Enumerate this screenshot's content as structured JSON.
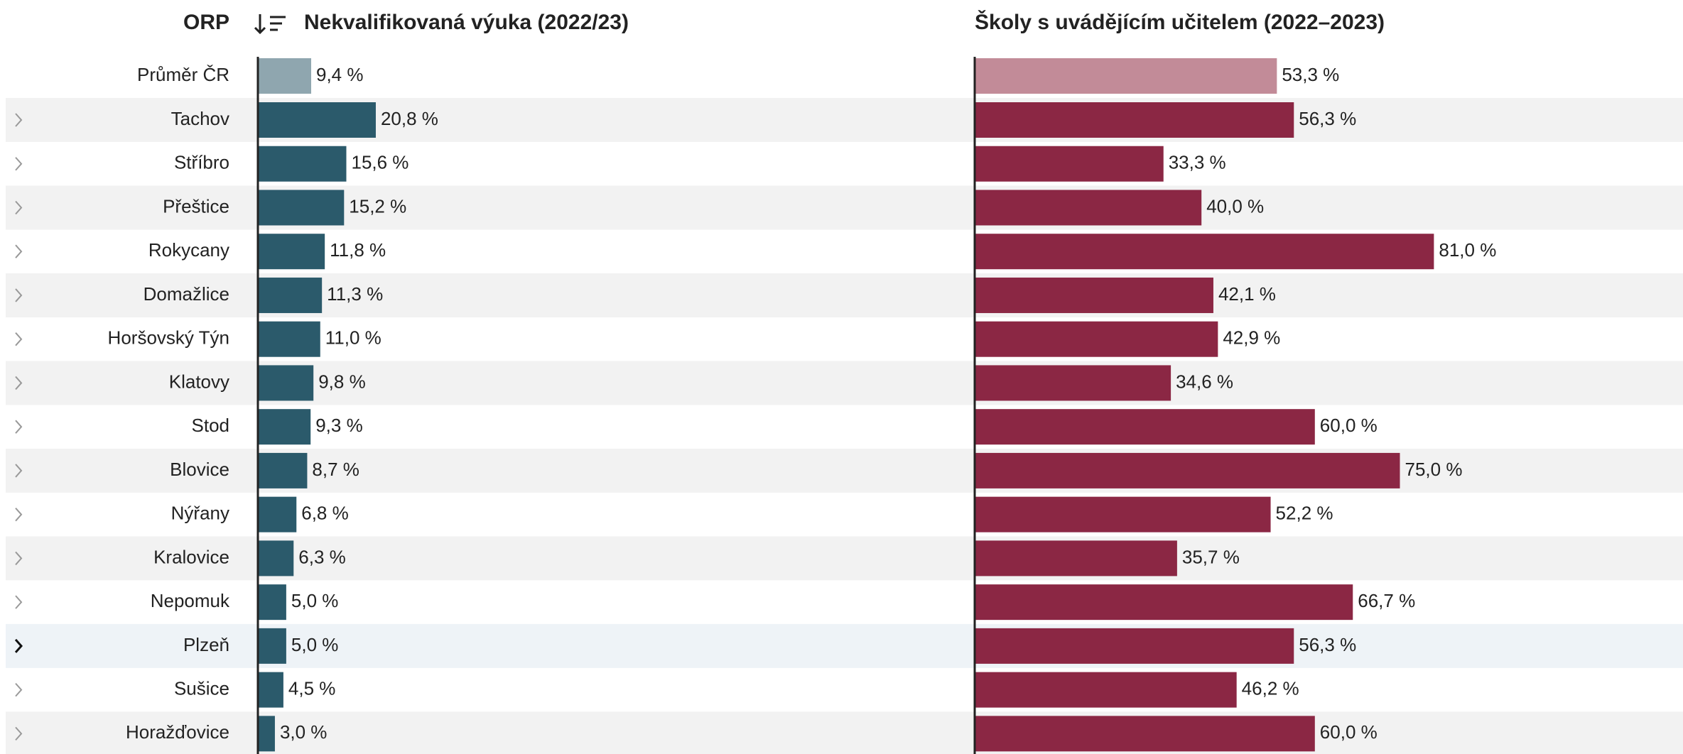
{
  "header": {
    "name": "ORP",
    "columns": [
      {
        "title": "Nekvalifikovaná výuka (2022/23)",
        "color": "#2b5a6b",
        "average_color": "#8fa6af"
      },
      {
        "title": "Školy s uvádějícím učitelem (2022–2023)",
        "color": "#8b2744",
        "average_color": "#c28b98"
      }
    ]
  },
  "average": {
    "name": "Průměr ČR",
    "values": [
      9.4,
      53.3
    ],
    "value_labels": [
      "9,4 %",
      "53,3 %"
    ]
  },
  "rows": [
    {
      "name": "Tachov",
      "values": [
        20.8,
        56.3
      ],
      "value_labels": [
        "20,8 %",
        "56,3 %"
      ]
    },
    {
      "name": "Stříbro",
      "values": [
        15.6,
        33.3
      ],
      "value_labels": [
        "15,6 %",
        "33,3 %"
      ]
    },
    {
      "name": "Přeštice",
      "values": [
        15.2,
        40.0
      ],
      "value_labels": [
        "15,2 %",
        "40,0 %"
      ]
    },
    {
      "name": "Rokycany",
      "values": [
        11.8,
        81.0
      ],
      "value_labels": [
        "11,8 %",
        "81,0 %"
      ]
    },
    {
      "name": "Domažlice",
      "values": [
        11.3,
        42.1
      ],
      "value_labels": [
        "11,3 %",
        "42,1 %"
      ]
    },
    {
      "name": "Horšovský Týn",
      "values": [
        11.0,
        42.9
      ],
      "value_labels": [
        "11,0 %",
        "42,9 %"
      ]
    },
    {
      "name": "Klatovy",
      "values": [
        9.8,
        34.6
      ],
      "value_labels": [
        "9,8 %",
        "34,6 %"
      ]
    },
    {
      "name": "Stod",
      "values": [
        9.3,
        60.0
      ],
      "value_labels": [
        "9,3 %",
        "60,0 %"
      ]
    },
    {
      "name": "Blovice",
      "values": [
        8.7,
        75.0
      ],
      "value_labels": [
        "8,7 %",
        "75,0 %"
      ]
    },
    {
      "name": "Nýřany",
      "values": [
        6.8,
        52.2
      ],
      "value_labels": [
        "6,8 %",
        "52,2 %"
      ]
    },
    {
      "name": "Kralovice",
      "values": [
        6.3,
        35.7
      ],
      "value_labels": [
        "6,3 %",
        "35,7 %"
      ]
    },
    {
      "name": "Nepomuk",
      "values": [
        5.0,
        66.7
      ],
      "value_labels": [
        "5,0 %",
        "66,7 %"
      ]
    },
    {
      "name": "Plzeň",
      "values": [
        5.0,
        56.3
      ],
      "value_labels": [
        "5,0 %",
        "56,3 %"
      ],
      "selected": true
    },
    {
      "name": "Sušice",
      "values": [
        4.5,
        46.2
      ],
      "value_labels": [
        "4,5 %",
        "46,2 %"
      ]
    },
    {
      "name": "Horažďovice",
      "values": [
        3.0,
        60.0
      ],
      "value_labels": [
        "3,0 %",
        "60,0 %"
      ]
    }
  ]
}
